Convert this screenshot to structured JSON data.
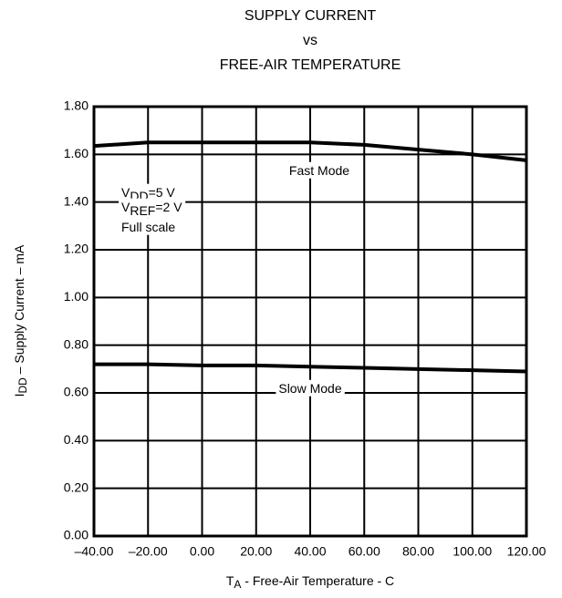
{
  "chart_data": {
    "type": "line",
    "title": [
      "SUPPLY CURRENT",
      "vs",
      "FREE-AIR TEMPERATURE"
    ],
    "x_label": [
      "T",
      "A",
      " - Free-Air Temperature - C"
    ],
    "y_label": [
      "I",
      "DD",
      " – Supply Current – mA"
    ],
    "x": [
      -40,
      -20,
      0,
      20,
      40,
      60,
      80,
      100,
      120
    ],
    "series": [
      {
        "name": "Fast Mode",
        "color": "#000000",
        "values": [
          1.635,
          1.65,
          1.65,
          1.65,
          1.65,
          1.64,
          1.62,
          1.6,
          1.575
        ]
      },
      {
        "name": "Slow Mode",
        "color": "#000000",
        "values": [
          0.72,
          0.72,
          0.715,
          0.715,
          0.71,
          0.705,
          0.7,
          0.695,
          0.69
        ]
      }
    ],
    "annotations": [
      [
        "V",
        "DD",
        "=5 V"
      ],
      [
        "V",
        "REF",
        "=2 V"
      ],
      [
        "Full scale"
      ]
    ],
    "xlim": [
      -40,
      120
    ],
    "ylim": [
      0,
      1.8
    ],
    "xticks": [
      {
        "value": -40,
        "label": "–40.00"
      },
      {
        "value": -20,
        "label": "–20.00"
      },
      {
        "value": 0,
        "label": "0.00"
      },
      {
        "value": 20,
        "label": "20.00"
      },
      {
        "value": 40,
        "label": "40.00"
      },
      {
        "value": 60,
        "label": "60.00"
      },
      {
        "value": 80,
        "label": "80.00"
      },
      {
        "value": 100,
        "label": "100.00"
      },
      {
        "value": 120,
        "label": "120.00"
      }
    ],
    "yticks": [
      {
        "value": 0,
        "label": "0.00"
      },
      {
        "value": 0.2,
        "label": "0.20"
      },
      {
        "value": 0.4,
        "label": "0.40"
      },
      {
        "value": 0.6,
        "label": "0.60"
      },
      {
        "value": 0.8,
        "label": "0.80"
      },
      {
        "value": 1.0,
        "label": "1.00"
      },
      {
        "value": 1.2,
        "label": "1.20"
      },
      {
        "value": 1.4,
        "label": "1.40"
      },
      {
        "value": 1.6,
        "label": "1.60"
      },
      {
        "value": 1.8,
        "label": "1.80"
      }
    ],
    "grid": true
  }
}
